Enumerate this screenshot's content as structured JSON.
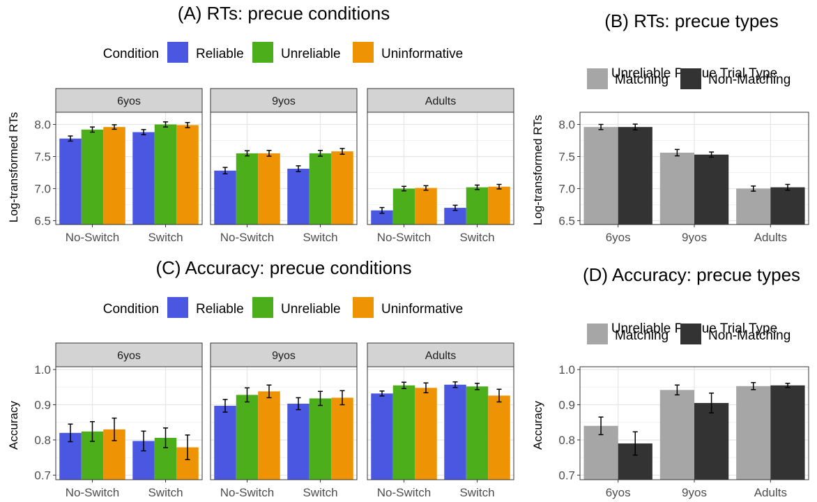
{
  "colors": {
    "Reliable": "#4A57E0",
    "Unreliable": "#4DAE1B",
    "Uninformative": "#EE9404",
    "Matching": "#A6A6A6",
    "Non-Matching": "#333333",
    "strip_bg": "#D3D3D3",
    "grid_major": "#E5E5E5",
    "grid_minor": "#F2F2F2"
  },
  "chart_data": [
    {
      "id": "A",
      "type": "bar",
      "title": "(A) RTs: precue conditions",
      "ylabel": "Log-transformed RTs",
      "xlabel": "",
      "ylim": [
        6.44,
        8.19
      ],
      "yticks": [
        6.5,
        7.0,
        7.5,
        8.0
      ],
      "ytick_labels": [
        "6.5",
        "7.0",
        "7.5",
        "8.0"
      ],
      "legend_title": "Condition",
      "legend_position": "top",
      "grid": true,
      "facets": [
        "6yos",
        "9yos",
        "Adults"
      ],
      "categories": [
        "No-Switch",
        "Switch"
      ],
      "series_names": [
        "Reliable",
        "Unreliable",
        "Uninformative"
      ],
      "data": {
        "6yos": [
          [
            7.78,
            7.92,
            7.96
          ],
          [
            7.88,
            8.0,
            7.99
          ]
        ],
        "9yos": [
          [
            7.28,
            7.55,
            7.55
          ],
          [
            7.31,
            7.55,
            7.58
          ]
        ],
        "Adults": [
          [
            6.66,
            7.0,
            7.01
          ],
          [
            6.7,
            7.02,
            7.03
          ]
        ]
      },
      "errors": {
        "6yos": [
          [
            0.04,
            0.04,
            0.035
          ],
          [
            0.04,
            0.04,
            0.04
          ]
        ],
        "9yos": [
          [
            0.05,
            0.04,
            0.045
          ],
          [
            0.045,
            0.045,
            0.045
          ]
        ],
        "Adults": [
          [
            0.045,
            0.035,
            0.035
          ],
          [
            0.04,
            0.035,
            0.035
          ]
        ]
      }
    },
    {
      "id": "B",
      "type": "bar",
      "title": "(B) RTs: precue types",
      "ylabel": "Log-transformed RTs",
      "xlabel": "",
      "ylim": [
        6.44,
        8.19
      ],
      "yticks": [
        6.5,
        7.0,
        7.5,
        8.0
      ],
      "ytick_labels": [
        "6.5",
        "7.0",
        "7.5",
        "8.0"
      ],
      "legend_title": "Unreliable Precue Trial Type",
      "legend_position": "top",
      "grid": true,
      "categories": [
        "6yos",
        "9yos",
        "Adults"
      ],
      "series": [
        {
          "name": "Matching",
          "values": [
            7.96,
            7.56,
            7.0
          ],
          "errors": [
            0.04,
            0.05,
            0.04
          ]
        },
        {
          "name": "Non-Matching",
          "values": [
            7.96,
            7.53,
            7.02
          ],
          "errors": [
            0.045,
            0.04,
            0.045
          ]
        }
      ]
    },
    {
      "id": "C",
      "type": "bar",
      "title": "(C) Accuracy: precue conditions",
      "ylabel": "Accuracy",
      "xlabel": "",
      "ylim": [
        0.687,
        1.008
      ],
      "yticks": [
        0.7,
        0.8,
        0.9,
        1.0
      ],
      "ytick_labels": [
        "0.7",
        "0.8",
        "0.9",
        "1.0"
      ],
      "legend_title": "Condition",
      "legend_position": "top",
      "grid": true,
      "facets": [
        "6yos",
        "9yos",
        "Adults"
      ],
      "categories": [
        "No-Switch",
        "Switch"
      ],
      "series_names": [
        "Reliable",
        "Unreliable",
        "Uninformative"
      ],
      "data": {
        "6yos": [
          [
            0.82,
            0.824,
            0.83
          ],
          [
            0.797,
            0.806,
            0.779
          ]
        ],
        "9yos": [
          [
            0.897,
            0.928,
            0.938
          ],
          [
            0.903,
            0.918,
            0.92
          ]
        ],
        "Adults": [
          [
            0.932,
            0.955,
            0.948
          ],
          [
            0.957,
            0.952,
            0.926
          ]
        ]
      },
      "errors": {
        "6yos": [
          [
            0.025,
            0.028,
            0.032
          ],
          [
            0.028,
            0.028,
            0.035
          ]
        ],
        "9yos": [
          [
            0.018,
            0.02,
            0.018
          ],
          [
            0.017,
            0.02,
            0.02
          ]
        ],
        "Adults": [
          [
            0.007,
            0.009,
            0.014
          ],
          [
            0.008,
            0.009,
            0.018
          ]
        ]
      }
    },
    {
      "id": "D",
      "type": "bar",
      "title": "(D) Accuracy: precue types",
      "ylabel": "Accuracy",
      "xlabel": "",
      "ylim": [
        0.687,
        1.008
      ],
      "yticks": [
        0.7,
        0.8,
        0.9,
        1.0
      ],
      "ytick_labels": [
        "0.7",
        "0.8",
        "0.9",
        "1.0"
      ],
      "legend_title": "Unreliable Precue Trial Type",
      "legend_position": "top",
      "grid": true,
      "categories": [
        "6yos",
        "9yos",
        "Adults"
      ],
      "series": [
        {
          "name": "Matching",
          "values": [
            0.84,
            0.942,
            0.953
          ],
          "errors": [
            0.025,
            0.014,
            0.01
          ]
        },
        {
          "name": "Non-Matching",
          "values": [
            0.79,
            0.905,
            0.955
          ],
          "errors": [
            0.033,
            0.028,
            0.006
          ]
        }
      ]
    }
  ]
}
